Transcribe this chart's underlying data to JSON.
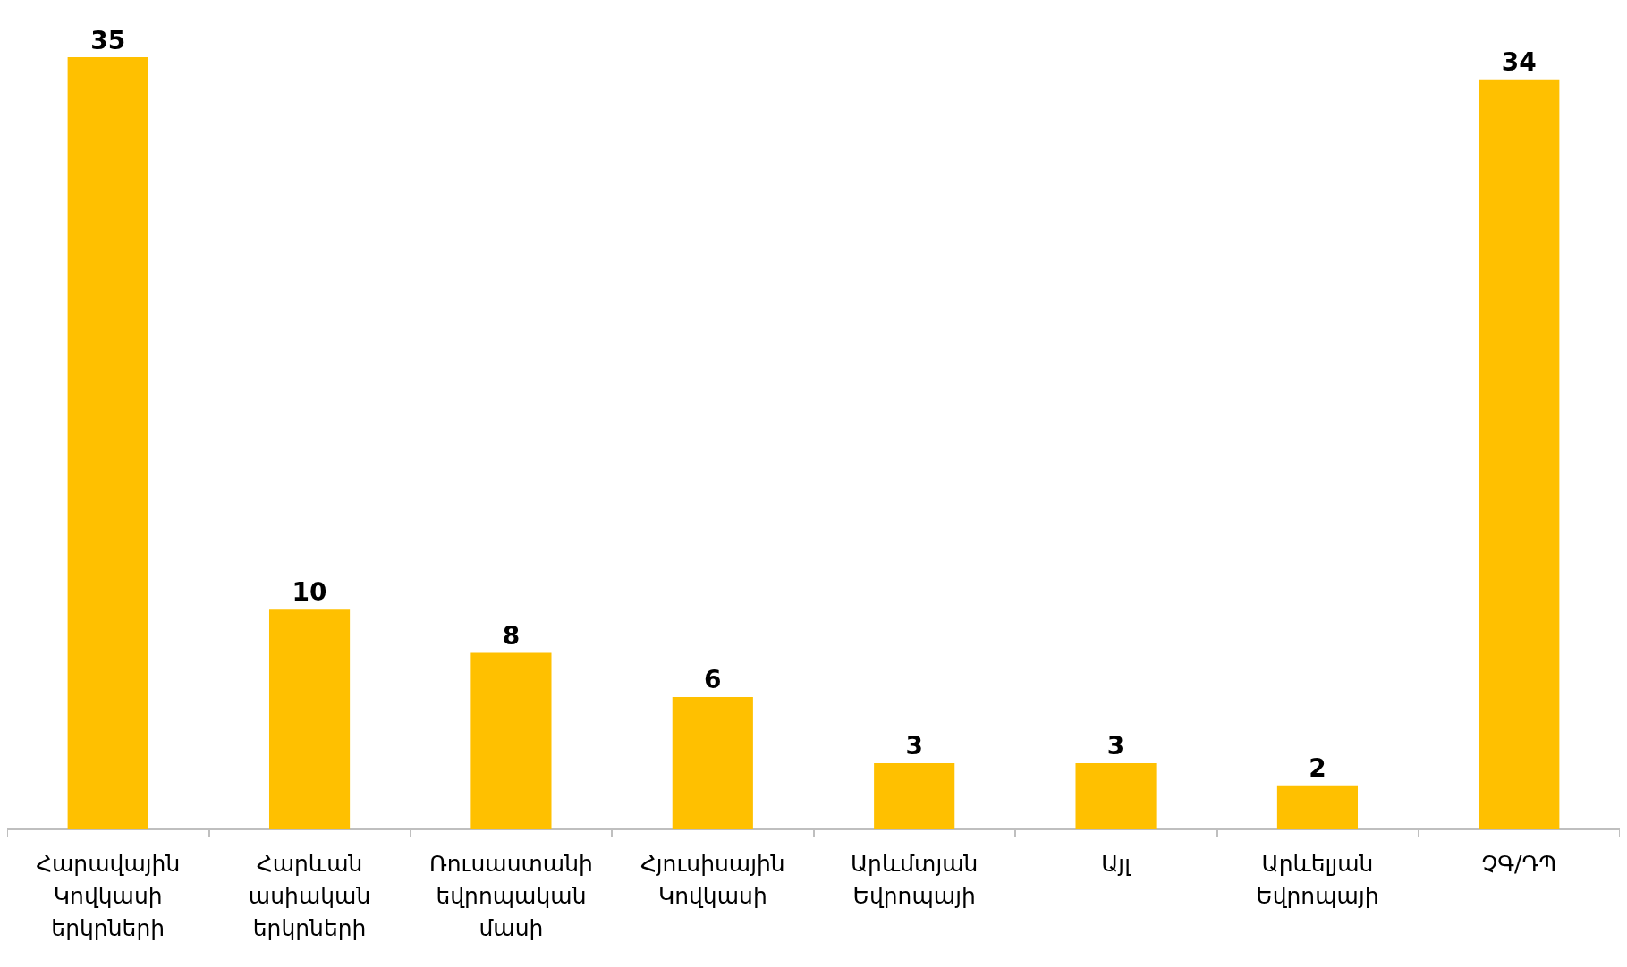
{
  "chart_data": {
    "type": "bar",
    "categories": [
      "Հարավային Կովկասի երկրների",
      "Հարևան ասիական երկրների",
      "Ռուսաստանի եվրոպական մասի",
      "Հյուսիսային Կովկասի",
      "Արևմտյան Եվրոպայի",
      "Այլ",
      "Արևելյան Եվրոպայի",
      "ՉԳ/ԴՊ"
    ],
    "values": [
      35,
      10,
      8,
      6,
      3,
      3,
      2,
      34
    ],
    "color": "#ffc000",
    "data_labels": true
  }
}
